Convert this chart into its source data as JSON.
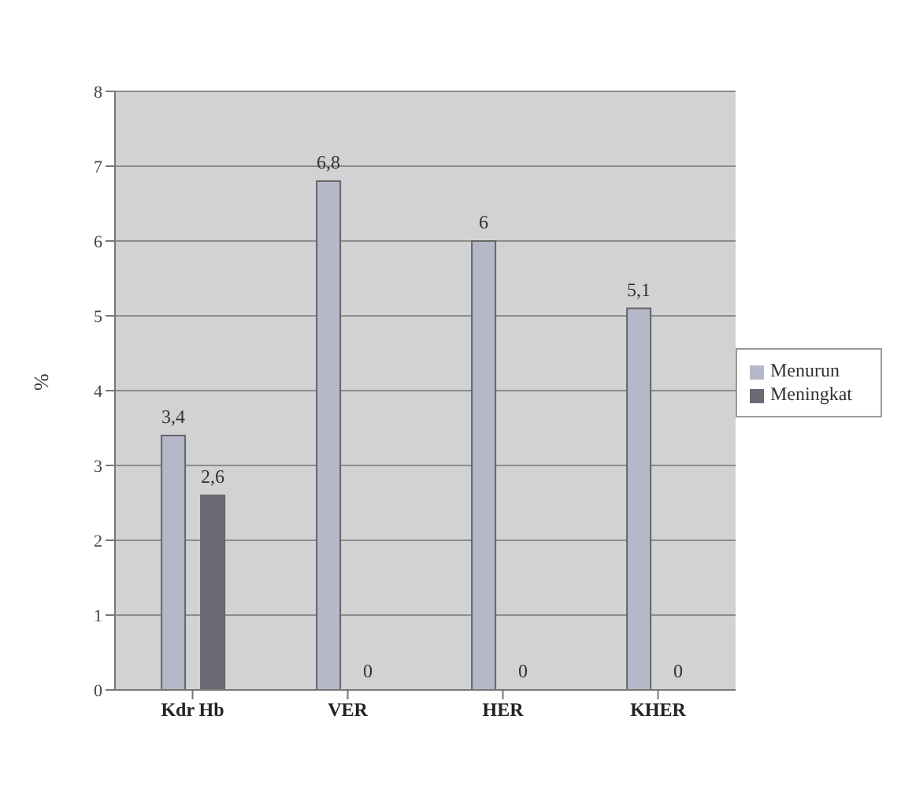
{
  "chart_data": {
    "type": "bar",
    "ylabel": "%",
    "categories": [
      "Kdr Hb",
      "VER",
      "HER",
      "KHER"
    ],
    "series": [
      {
        "name": "Menurun",
        "color": "#b4b8c8",
        "values": [
          3.4,
          6.8,
          6,
          5.1
        ],
        "value_labels": [
          "3,4",
          "6,8",
          "6",
          "5,1"
        ]
      },
      {
        "name": "Meningkat",
        "color": "#6a6a74",
        "values": [
          2.6,
          0,
          0,
          0
        ],
        "value_labels": [
          "2,6",
          "0",
          "0",
          "0"
        ]
      }
    ],
    "ylim": [
      0,
      8
    ],
    "yticks": [
      0,
      1,
      2,
      3,
      4,
      5,
      6,
      7,
      8
    ],
    "grid": "y",
    "legend": "right"
  }
}
